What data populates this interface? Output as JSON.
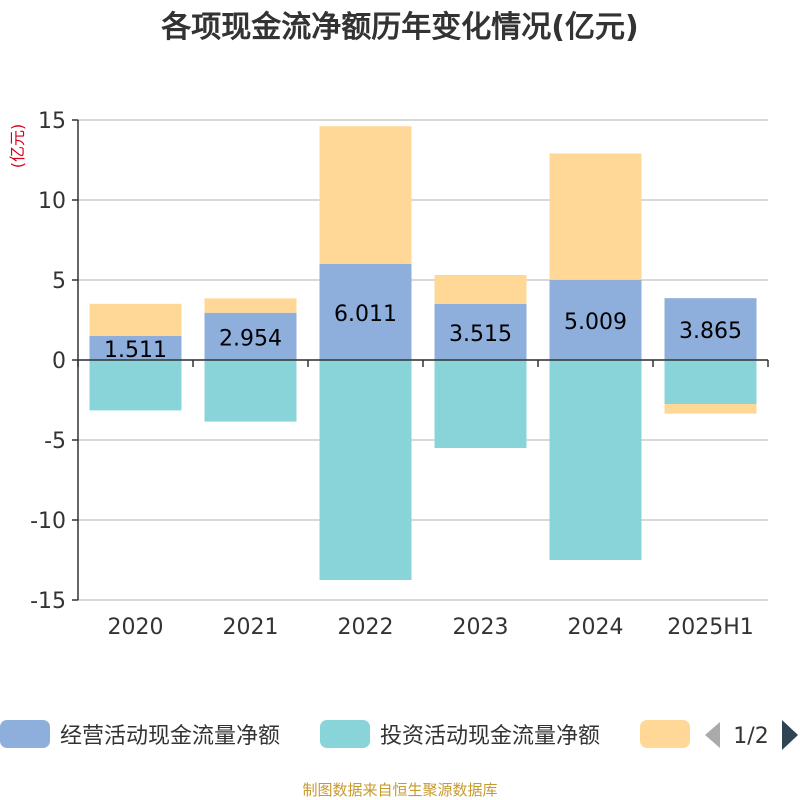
{
  "chart_data": {
    "type": "bar",
    "stacked": true,
    "title": "各项现金流净额历年变化情况(亿元)",
    "unit": "(亿元)",
    "categories": [
      "2020",
      "2021",
      "2022",
      "2023",
      "2024",
      "2025H1"
    ],
    "ylim": [
      -15,
      15
    ],
    "yticks": [
      15,
      10,
      5,
      0,
      -5,
      -10,
      -15
    ],
    "grid": true,
    "legend_position": "bottom",
    "series": [
      {
        "name": "经营活动现金流量净额",
        "color": "#8eaedb",
        "values": [
          1.511,
          2.954,
          6.011,
          3.515,
          5.009,
          3.865
        ],
        "labels": [
          "1.511",
          "2.954",
          "6.011",
          "3.515",
          "5.009",
          "3.865"
        ]
      },
      {
        "name": "投资活动现金流量净额",
        "color": "#88d4d8",
        "values": [
          -3.15,
          -3.85,
          -13.75,
          -5.5,
          -12.5,
          -2.75
        ]
      },
      {
        "name": "",
        "color": "#ffd898",
        "values": [
          2.0,
          0.9,
          8.6,
          1.8,
          7.9,
          -0.6
        ]
      }
    ]
  },
  "legend": {
    "pager": "1/2"
  },
  "source": "制图数据来自恒生聚源数据库"
}
